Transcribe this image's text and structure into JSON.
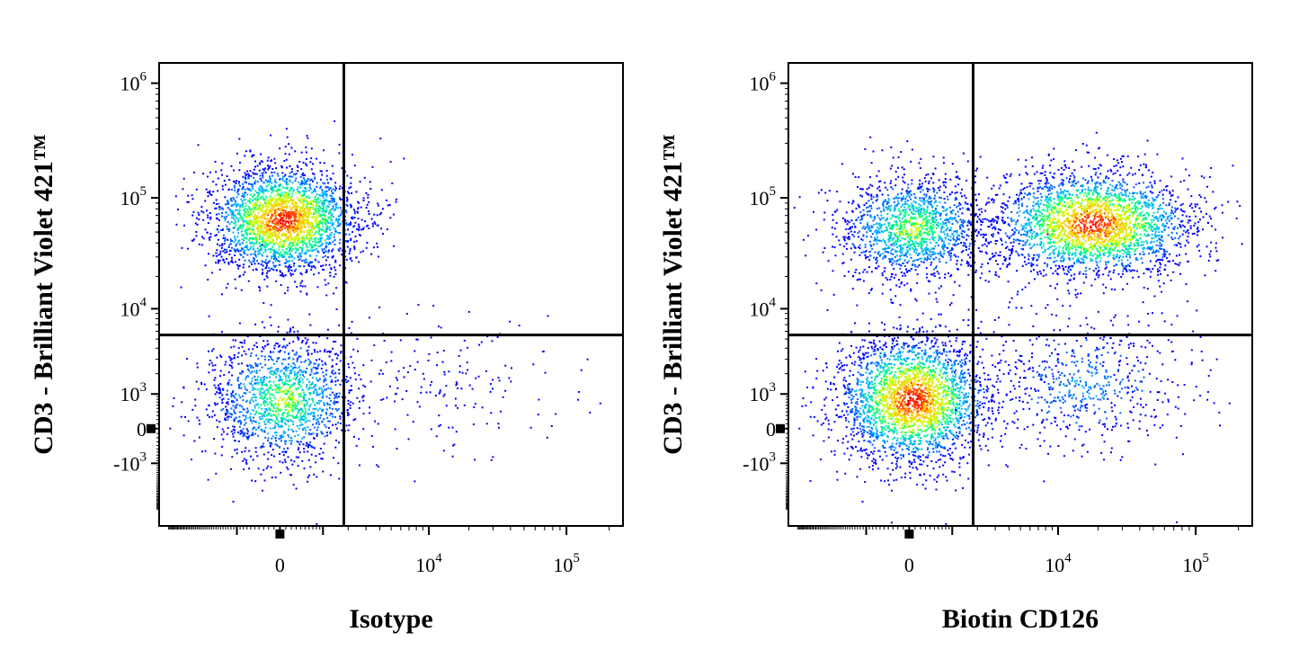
{
  "chart_data": [
    {
      "type": "scatter",
      "subtype": "flow-cytometry-density",
      "xlabel": "Isotype",
      "ylabel": "CD3 - Brilliant Violet 421™",
      "x_scale": "biexponential",
      "y_scale": "biexponential",
      "x_ticks": [
        {
          "base": "0",
          "exp": ""
        },
        {
          "base": "10",
          "exp": "4"
        },
        {
          "base": "10",
          "exp": "5"
        }
      ],
      "y_ticks": [
        {
          "base": "10",
          "exp": "6"
        },
        {
          "base": "10",
          "exp": "5"
        },
        {
          "base": "10",
          "exp": "4"
        },
        {
          "base": "10",
          "exp": "3"
        },
        {
          "base": "0",
          "exp": ""
        },
        {
          "base": "-10",
          "exp": "3"
        }
      ],
      "quadrant_gate": {
        "x": 1800,
        "y": 5500
      },
      "populations": [
        {
          "quadrant": "upper-left",
          "center": {
            "x": 50,
            "y": 65000
          },
          "density": "high"
        },
        {
          "quadrant": "lower-left",
          "center": {
            "x": 50,
            "y": 800
          },
          "density": "medium"
        },
        {
          "quadrant": "lower-right",
          "center": {
            "x": 15000,
            "y": 1500
          },
          "density": "sparse"
        }
      ]
    },
    {
      "type": "scatter",
      "subtype": "flow-cytometry-density",
      "xlabel": "Biotin CD126",
      "ylabel": "CD3 - Brilliant Violet 421™",
      "x_scale": "biexponential",
      "y_scale": "biexponential",
      "x_ticks": [
        {
          "base": "0",
          "exp": ""
        },
        {
          "base": "10",
          "exp": "4"
        },
        {
          "base": "10",
          "exp": "5"
        }
      ],
      "y_ticks": [
        {
          "base": "10",
          "exp": "6"
        },
        {
          "base": "10",
          "exp": "5"
        },
        {
          "base": "10",
          "exp": "4"
        },
        {
          "base": "10",
          "exp": "3"
        },
        {
          "base": "0",
          "exp": ""
        },
        {
          "base": "-10",
          "exp": "3"
        }
      ],
      "quadrant_gate": {
        "x": 1800,
        "y": 5500
      },
      "populations": [
        {
          "quadrant": "upper-left",
          "center": {
            "x": 50,
            "y": 55000
          },
          "density": "medium"
        },
        {
          "quadrant": "upper-right",
          "center": {
            "x": 18000,
            "y": 60000
          },
          "density": "high"
        },
        {
          "quadrant": "lower-left",
          "center": {
            "x": 50,
            "y": 800
          },
          "density": "high"
        },
        {
          "quadrant": "lower-right",
          "center": {
            "x": 15000,
            "y": 1500
          },
          "density": "low"
        }
      ]
    }
  ],
  "density_colors": [
    "#0000ff",
    "#0060ff",
    "#00b4ff",
    "#00ff80",
    "#c8ff00",
    "#ffc800",
    "#ff4000",
    "#ff0000"
  ]
}
